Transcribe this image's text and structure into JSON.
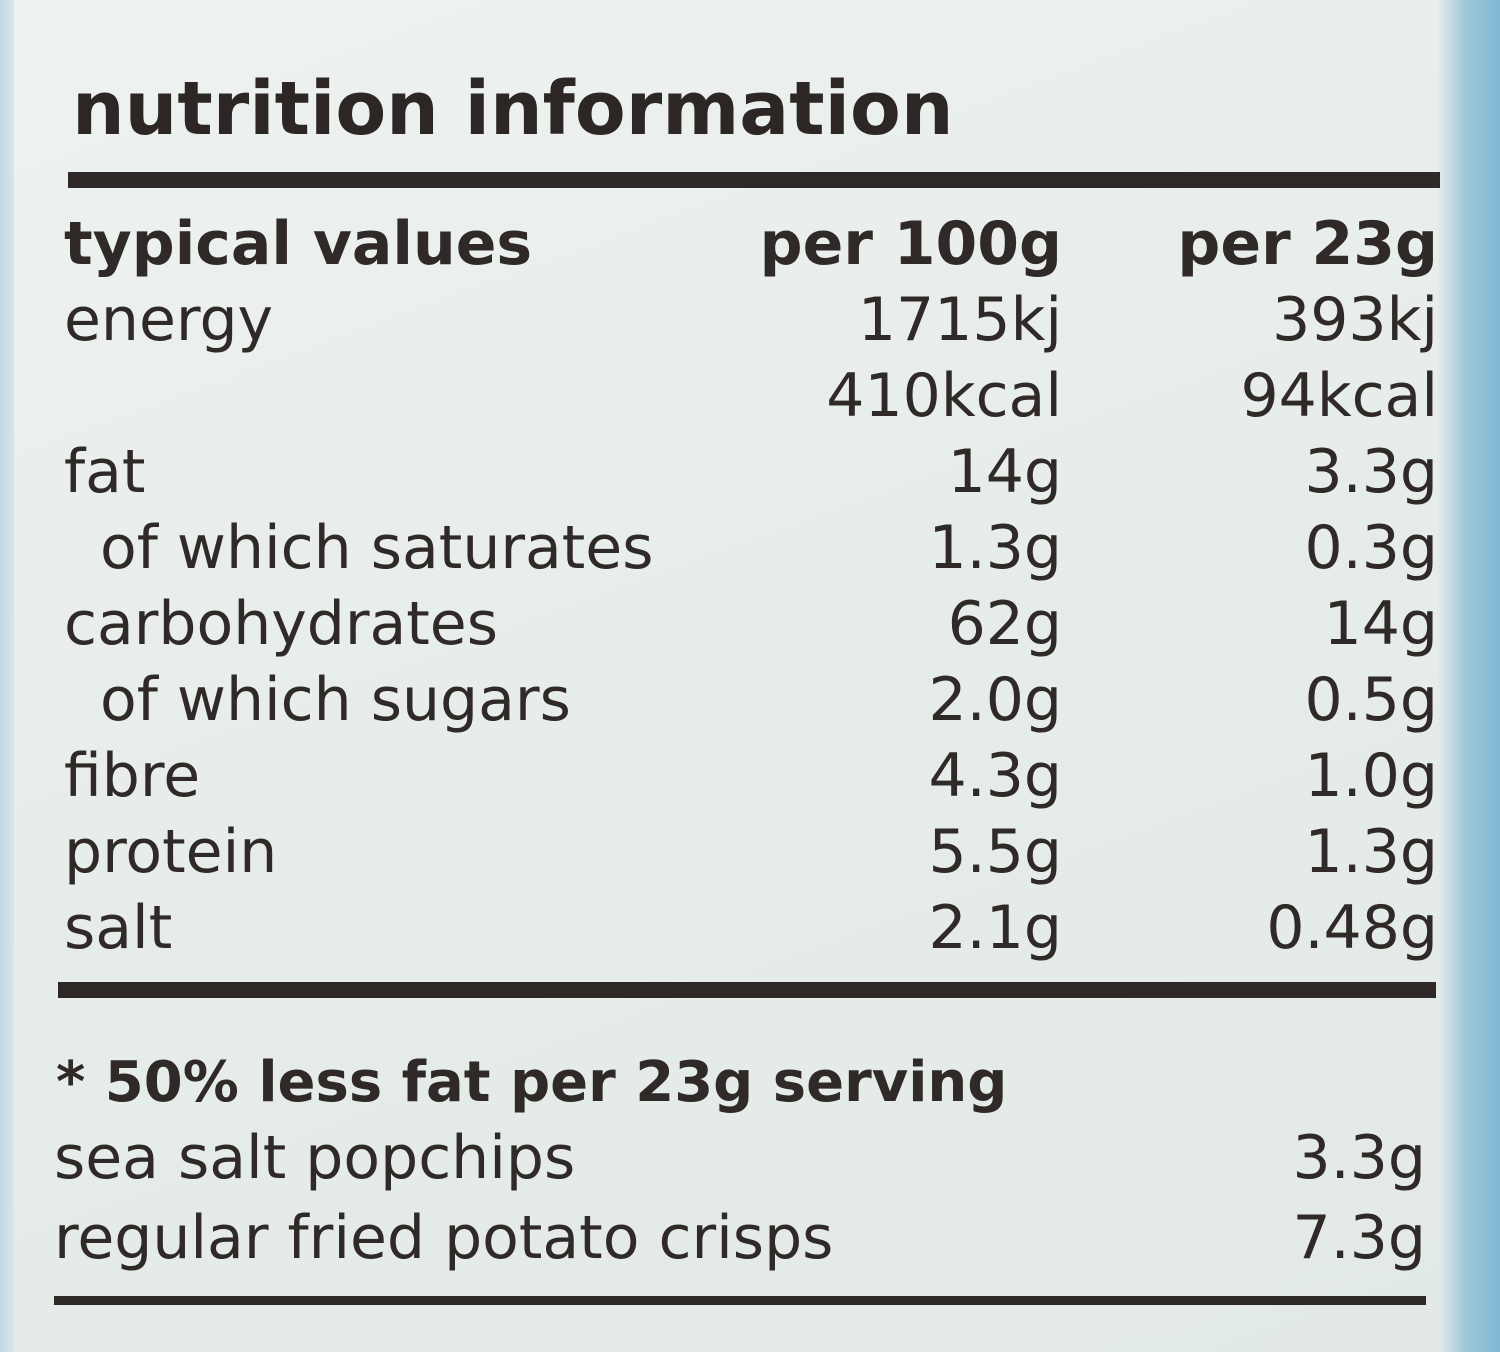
{
  "title": "nutrition information",
  "header": {
    "label": "typical values",
    "per_100g": "per 100g",
    "per_serving": "per 23g"
  },
  "rows": [
    {
      "label": "energy",
      "per_100g": "1715kj",
      "per_serving": "393kj"
    },
    {
      "label": "",
      "per_100g": "410kcal",
      "per_serving": "94kcal"
    },
    {
      "label": "fat",
      "per_100g": "14g",
      "per_serving": "3.3g"
    },
    {
      "label": "of which saturates",
      "per_100g": "1.3g",
      "per_serving": "0.3g"
    },
    {
      "label": "carbohydrates",
      "per_100g": "62g",
      "per_serving": "14g"
    },
    {
      "label": "of which sugars",
      "per_100g": "2.0g",
      "per_serving": "0.5g"
    },
    {
      "label": "fibre",
      "per_100g": "4.3g",
      "per_serving": "1.0g"
    },
    {
      "label": "protein",
      "per_100g": "5.5g",
      "per_serving": "1.3g"
    },
    {
      "label": "salt",
      "per_100g": "2.1g",
      "per_serving": "0.48g"
    }
  ],
  "comparison": {
    "note": "* 50% less fat per 23g serving",
    "items": [
      {
        "label": "sea salt popchips",
        "value": "3.3g"
      },
      {
        "label": "regular fried potato crisps",
        "value": "7.3g"
      }
    ]
  }
}
